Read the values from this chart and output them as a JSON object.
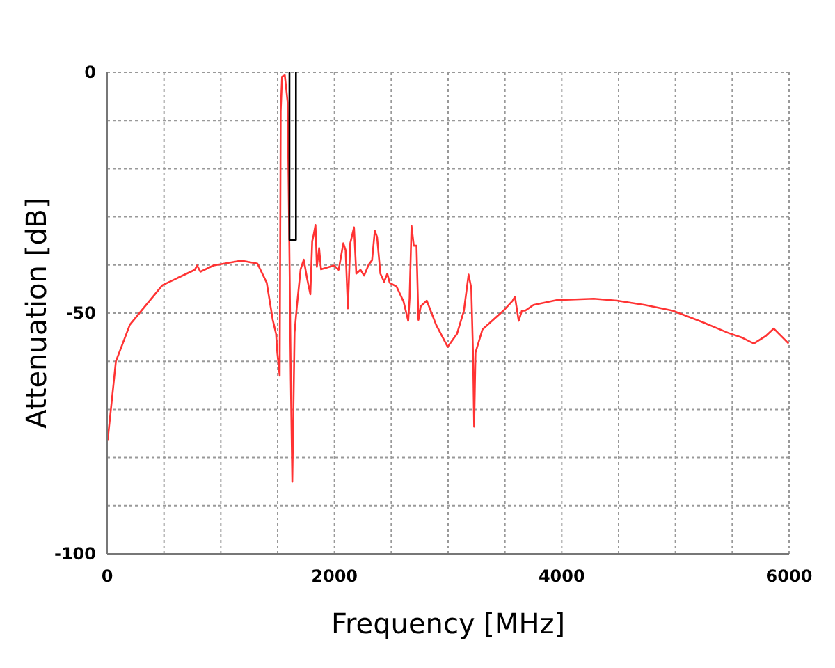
{
  "chart_data": {
    "type": "line",
    "xlabel": "Frequency [MHz]",
    "ylabel": "Attenuation [dB]",
    "xlim": [
      0,
      6000
    ],
    "ylim": [
      -100,
      0
    ],
    "xticks": [
      0,
      {
        "value": 500,
        "label": null
      },
      {
        "value": 1000,
        "label": null
      },
      {
        "value": 1500,
        "label": null
      },
      2000,
      {
        "value": 2500,
        "label": null
      },
      {
        "value": 3000,
        "label": null
      },
      {
        "value": 3500,
        "label": null
      },
      4000,
      {
        "value": 4500,
        "label": null
      },
      {
        "value": 5000,
        "label": null
      },
      {
        "value": 5500,
        "label": null
      },
      6000
    ],
    "yticks": [
      -100,
      {
        "value": -90,
        "label": null
      },
      {
        "value": -80,
        "label": null
      },
      {
        "value": -70,
        "label": null
      },
      {
        "value": -60,
        "label": null
      },
      -50,
      {
        "value": -40,
        "label": null
      },
      {
        "value": -30,
        "label": null
      },
      {
        "value": -20,
        "label": null
      },
      {
        "value": -10,
        "label": null
      },
      0
    ],
    "grid": true,
    "line_style": "solid",
    "marker": "none",
    "series": [
      {
        "color": "#ff3333",
        "x": [
          4,
          77,
          200,
          486,
          771,
          792,
          820,
          935,
          1180,
          1322,
          1404,
          1457,
          1486,
          1497,
          1518,
          1527,
          1539,
          1563,
          1588,
          1600,
          1616,
          1629,
          1649,
          1669,
          1702,
          1730,
          1759,
          1788,
          1804,
          1818,
          1833,
          1845,
          1865,
          1882,
          1996,
          2037,
          2078,
          2098,
          2118,
          2139,
          2172,
          2192,
          2229,
          2261,
          2302,
          2331,
          2355,
          2375,
          2404,
          2437,
          2465,
          2486,
          2547,
          2608,
          2649,
          2661,
          2678,
          2698,
          2722,
          2739,
          2759,
          2812,
          2894,
          2996,
          3078,
          3139,
          3180,
          3204,
          3220,
          3229,
          3241,
          3302,
          3486,
          3568,
          3588,
          3621,
          3649,
          3678,
          3751,
          3955,
          4282,
          4486,
          4731,
          4976,
          5220,
          5465,
          5588,
          5690,
          5792,
          5865,
          5996
        ],
        "values": [
          -76.5,
          -60,
          -52.4,
          -44.2,
          -41,
          -40.1,
          -41.4,
          -40.1,
          -39.1,
          -39.7,
          -43.7,
          -51.4,
          -54.3,
          -58.2,
          -63,
          -8.1,
          -0.9,
          -0.6,
          -6.2,
          -30,
          -64,
          -85,
          -54,
          -48.6,
          -40.9,
          -38.9,
          -42.8,
          -46.1,
          -35.1,
          -33.6,
          -31.7,
          -40.4,
          -36.5,
          -40.9,
          -40.1,
          -41,
          -35.5,
          -36.9,
          -49,
          -35.5,
          -32.2,
          -41.8,
          -41,
          -42.2,
          -39.9,
          -39,
          -32.9,
          -34.2,
          -41.8,
          -43.5,
          -41.8,
          -43.7,
          -44.5,
          -47.6,
          -51.6,
          -47,
          -31.9,
          -36,
          -36,
          -51.4,
          -48.6,
          -47.4,
          -52.4,
          -57,
          -54.3,
          -49.5,
          -42,
          -44.8,
          -59.2,
          -73.6,
          -58.2,
          -53.4,
          -49.5,
          -47.4,
          -46.6,
          -51.6,
          -49.5,
          -49.5,
          -48.3,
          -47.3,
          -47,
          -47.4,
          -48.3,
          -49.5,
          -51.7,
          -54.1,
          -55.1,
          -56.3,
          -54.8,
          -53.2,
          -56.3
        ]
      },
      {
        "color": "#000000",
        "x": [
          1604,
          1604,
          1661,
          1661
        ],
        "values": [
          0,
          -34.8,
          -34.8,
          0
        ]
      }
    ]
  }
}
